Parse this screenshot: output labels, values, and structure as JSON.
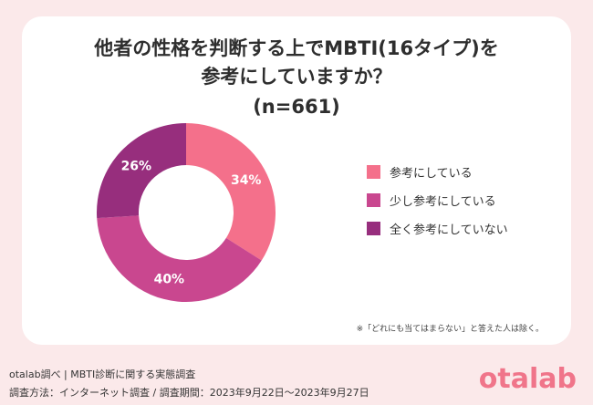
{
  "chart_data": {
    "type": "pie",
    "title_line1": "他者の性格を判断する上でMBTI(16タイプ)を",
    "title_line2": "参考にしていますか？",
    "subtitle": "(n=661)",
    "categories": [
      "参考にしている",
      "少し参考にしている",
      "全く参考にしていない"
    ],
    "values": [
      34,
      40,
      26
    ],
    "value_labels": [
      "34%",
      "40%",
      "26%"
    ],
    "colors": [
      "#f4708b",
      "#c9478f",
      "#972e7d"
    ],
    "legend_position": "right",
    "note": "※「どれにも当てはまらない」と答えた人は除く。"
  },
  "footer": {
    "line1": "otalab調べ | MBTI診断に関する実態調査",
    "line2": "調査方法：インターネット調査 / 調査期間：2023年9月22日〜2023年9月27日"
  },
  "brand": "otalab"
}
